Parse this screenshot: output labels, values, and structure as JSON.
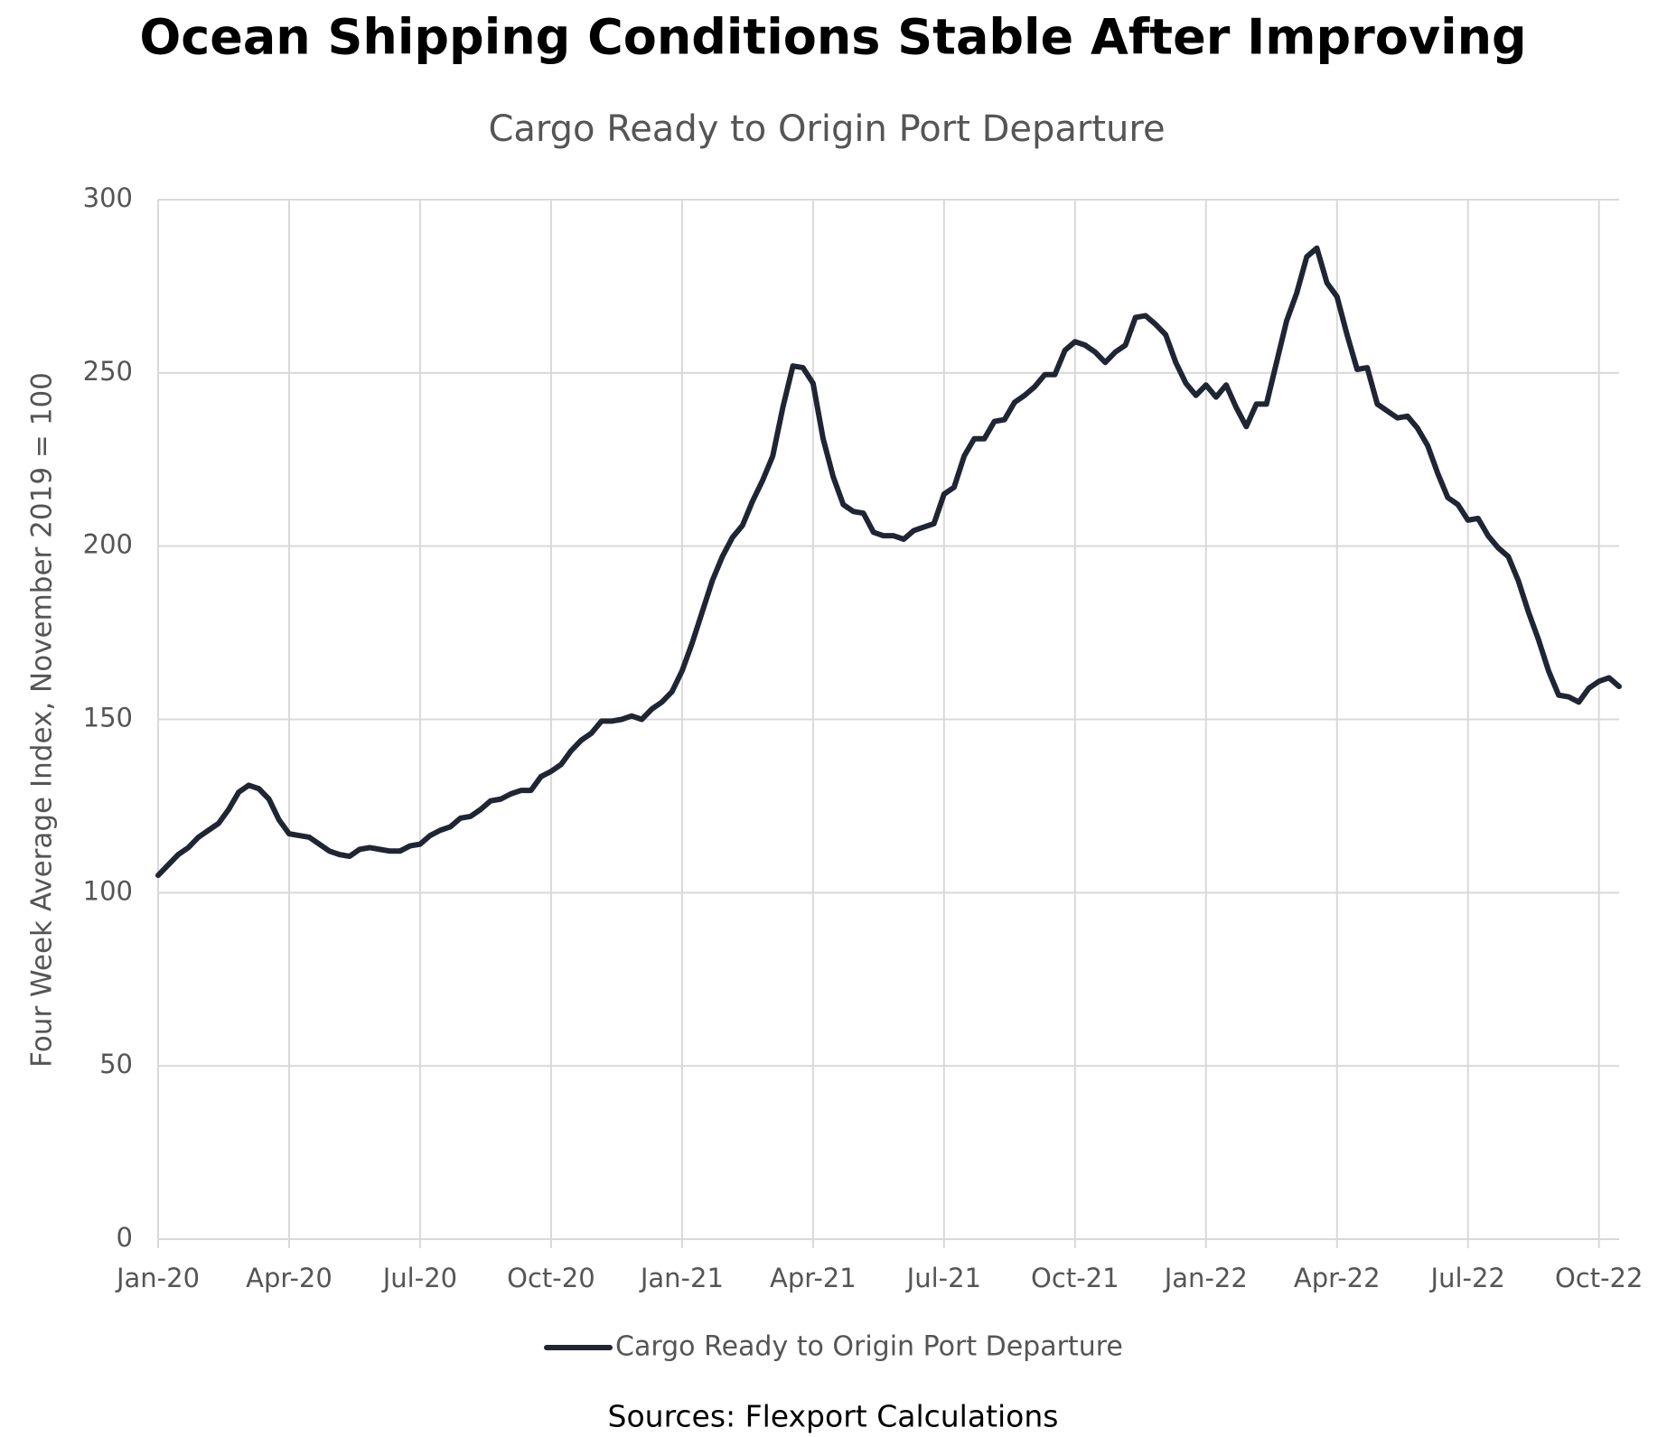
{
  "chart_data": {
    "type": "line",
    "title": "Ocean Shipping Conditions Stable After Improving",
    "subtitle": "Cargo Ready to Origin Port Departure",
    "y_label": "Four Week Average Index, November 2019 = 100",
    "source": "Sources: Flexport Calculations",
    "categories": [
      "Jan-20",
      null,
      null,
      null,
      null,
      null,
      null,
      null,
      null,
      null,
      null,
      null,
      null,
      "Apr-20",
      null,
      null,
      null,
      null,
      null,
      null,
      null,
      null,
      null,
      null,
      null,
      null,
      "Jul-20",
      null,
      null,
      null,
      null,
      null,
      null,
      null,
      null,
      null,
      null,
      null,
      null,
      "Oct-20",
      null,
      null,
      null,
      null,
      null,
      null,
      null,
      null,
      null,
      null,
      null,
      null,
      "Jan-21",
      null,
      null,
      null,
      null,
      null,
      null,
      null,
      null,
      null,
      null,
      null,
      null,
      "Apr-21",
      null,
      null,
      null,
      null,
      null,
      null,
      null,
      null,
      null,
      null,
      null,
      null,
      "Jul-21",
      null,
      null,
      null,
      null,
      null,
      null,
      null,
      null,
      null,
      null,
      null,
      null,
      "Oct-21",
      null,
      null,
      null,
      null,
      null,
      null,
      null,
      null,
      null,
      null,
      null,
      null,
      "Jan-22",
      null,
      null,
      null,
      null,
      null,
      null,
      null,
      null,
      null,
      null,
      null,
      null,
      "Apr-22",
      null,
      null,
      null,
      null,
      null,
      null,
      null,
      null,
      null,
      null,
      null,
      null,
      "Jul-22",
      null,
      null,
      null,
      null,
      null,
      null,
      null,
      null,
      null,
      null,
      null,
      null,
      "Oct-22",
      null,
      null
    ],
    "series": [
      {
        "name": "Cargo Ready to Origin Port Departure",
        "color": "#1f2533",
        "values": [
          105,
          108,
          111,
          113,
          116,
          118,
          120,
          124,
          129,
          131,
          130,
          127,
          121,
          117,
          116.5,
          116,
          114,
          112,
          111,
          110.5,
          112.5,
          113,
          112.5,
          112,
          112,
          113.5,
          114,
          116.5,
          118,
          119,
          121.5,
          122,
          124,
          126.5,
          127,
          128.5,
          129.5,
          129.5,
          133.5,
          135,
          137,
          141,
          144,
          146,
          149.5,
          149.5,
          150,
          151,
          150,
          153,
          155,
          158,
          164,
          172,
          181,
          190,
          197,
          202.5,
          206,
          213,
          219,
          226,
          240,
          252,
          251.5,
          247,
          231,
          220,
          212,
          210,
          209.5,
          204,
          203,
          203,
          202,
          204.5,
          205.5,
          206.5,
          215,
          217,
          226,
          231,
          231,
          236,
          236.5,
          241.5,
          243.5,
          246,
          249.5,
          249.5,
          256.5,
          259,
          258,
          256,
          253,
          256,
          258,
          266,
          266.5,
          264,
          261,
          253,
          247,
          243.5,
          246.5,
          243,
          246.5,
          240,
          234.5,
          241,
          241,
          253,
          265,
          273,
          283.5,
          286,
          276,
          272,
          261,
          251,
          251.5,
          241,
          239,
          237,
          237.5,
          234,
          229,
          221,
          214,
          212,
          207.5,
          208,
          203,
          199.5,
          197,
          190,
          181,
          173,
          164,
          157,
          156.5,
          155,
          159,
          161,
          162,
          159.5
        ]
      }
    ],
    "ylim": [
      0,
      300
    ],
    "yticks": [
      0,
      50,
      100,
      150,
      200,
      250,
      300
    ],
    "grid": true
  }
}
